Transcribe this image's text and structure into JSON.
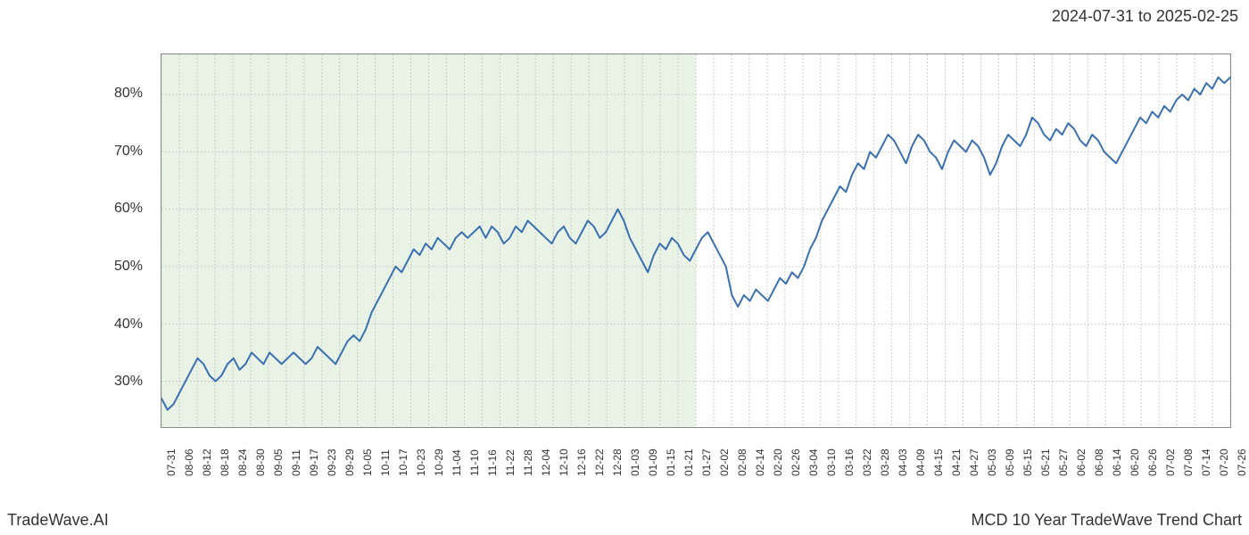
{
  "header": {
    "date_range": "2024-07-31 to 2025-02-25"
  },
  "footer": {
    "left_text": "TradeWave.AI",
    "right_text": "MCD 10 Year TradeWave Trend Chart"
  },
  "chart": {
    "type": "line",
    "background_color": "#ffffff",
    "highlight_color": "#d9ead3",
    "highlight_opacity": 0.6,
    "highlight_start_index": 0,
    "highlight_end_index": 30,
    "line_color": "#3a6fb0",
    "line_width": 2,
    "grid_color": "#cccccc",
    "grid_dash": "2,2",
    "border_color": "#888888",
    "y_axis": {
      "min": 22,
      "max": 87,
      "ticks": [
        30,
        40,
        50,
        60,
        70,
        80
      ],
      "tick_labels": [
        "30%",
        "40%",
        "50%",
        "60%",
        "70%",
        "80%"
      ],
      "label_fontsize": 16,
      "label_color": "#333333"
    },
    "x_axis": {
      "labels": [
        "07-31",
        "08-06",
        "08-12",
        "08-18",
        "08-24",
        "08-30",
        "09-05",
        "09-11",
        "09-17",
        "09-23",
        "09-29",
        "10-05",
        "10-11",
        "10-17",
        "10-23",
        "10-29",
        "11-04",
        "11-10",
        "11-16",
        "11-22",
        "11-28",
        "12-04",
        "12-10",
        "12-16",
        "12-22",
        "12-28",
        "01-03",
        "01-09",
        "01-15",
        "01-21",
        "01-27",
        "02-02",
        "02-08",
        "02-14",
        "02-20",
        "02-26",
        "03-04",
        "03-10",
        "03-16",
        "03-22",
        "03-28",
        "04-03",
        "04-09",
        "04-15",
        "04-21",
        "04-27",
        "05-03",
        "05-09",
        "05-15",
        "05-21",
        "05-27",
        "06-02",
        "06-08",
        "06-14",
        "06-20",
        "06-26",
        "07-02",
        "07-08",
        "07-14",
        "07-20",
        "07-26"
      ],
      "label_fontsize": 12,
      "label_color": "#333333",
      "rotation": -90
    },
    "data_values": [
      27,
      25,
      26,
      28,
      30,
      32,
      34,
      33,
      31,
      30,
      31,
      33,
      34,
      32,
      33,
      35,
      34,
      33,
      35,
      34,
      33,
      34,
      35,
      34,
      33,
      34,
      36,
      35,
      34,
      33,
      35,
      37,
      38,
      37,
      39,
      42,
      44,
      46,
      48,
      50,
      49,
      51,
      53,
      52,
      54,
      53,
      55,
      54,
      53,
      55,
      56,
      55,
      56,
      57,
      55,
      57,
      56,
      54,
      55,
      57,
      56,
      58,
      57,
      56,
      55,
      54,
      56,
      57,
      55,
      54,
      56,
      58,
      57,
      55,
      56,
      58,
      60,
      58,
      55,
      53,
      51,
      49,
      52,
      54,
      53,
      55,
      54,
      52,
      51,
      53,
      55,
      56,
      54,
      52,
      50,
      45,
      43,
      45,
      44,
      46,
      45,
      44,
      46,
      48,
      47,
      49,
      48,
      50,
      53,
      55,
      58,
      60,
      62,
      64,
      63,
      66,
      68,
      67,
      70,
      69,
      71,
      73,
      72,
      70,
      68,
      71,
      73,
      72,
      70,
      69,
      67,
      70,
      72,
      71,
      70,
      72,
      71,
      69,
      66,
      68,
      71,
      73,
      72,
      71,
      73,
      76,
      75,
      73,
      72,
      74,
      73,
      75,
      74,
      72,
      71,
      73,
      72,
      70,
      69,
      68,
      70,
      72,
      74,
      76,
      75,
      77,
      76,
      78,
      77,
      79,
      80,
      79,
      81,
      80,
      82,
      81,
      83,
      82,
      83
    ]
  }
}
